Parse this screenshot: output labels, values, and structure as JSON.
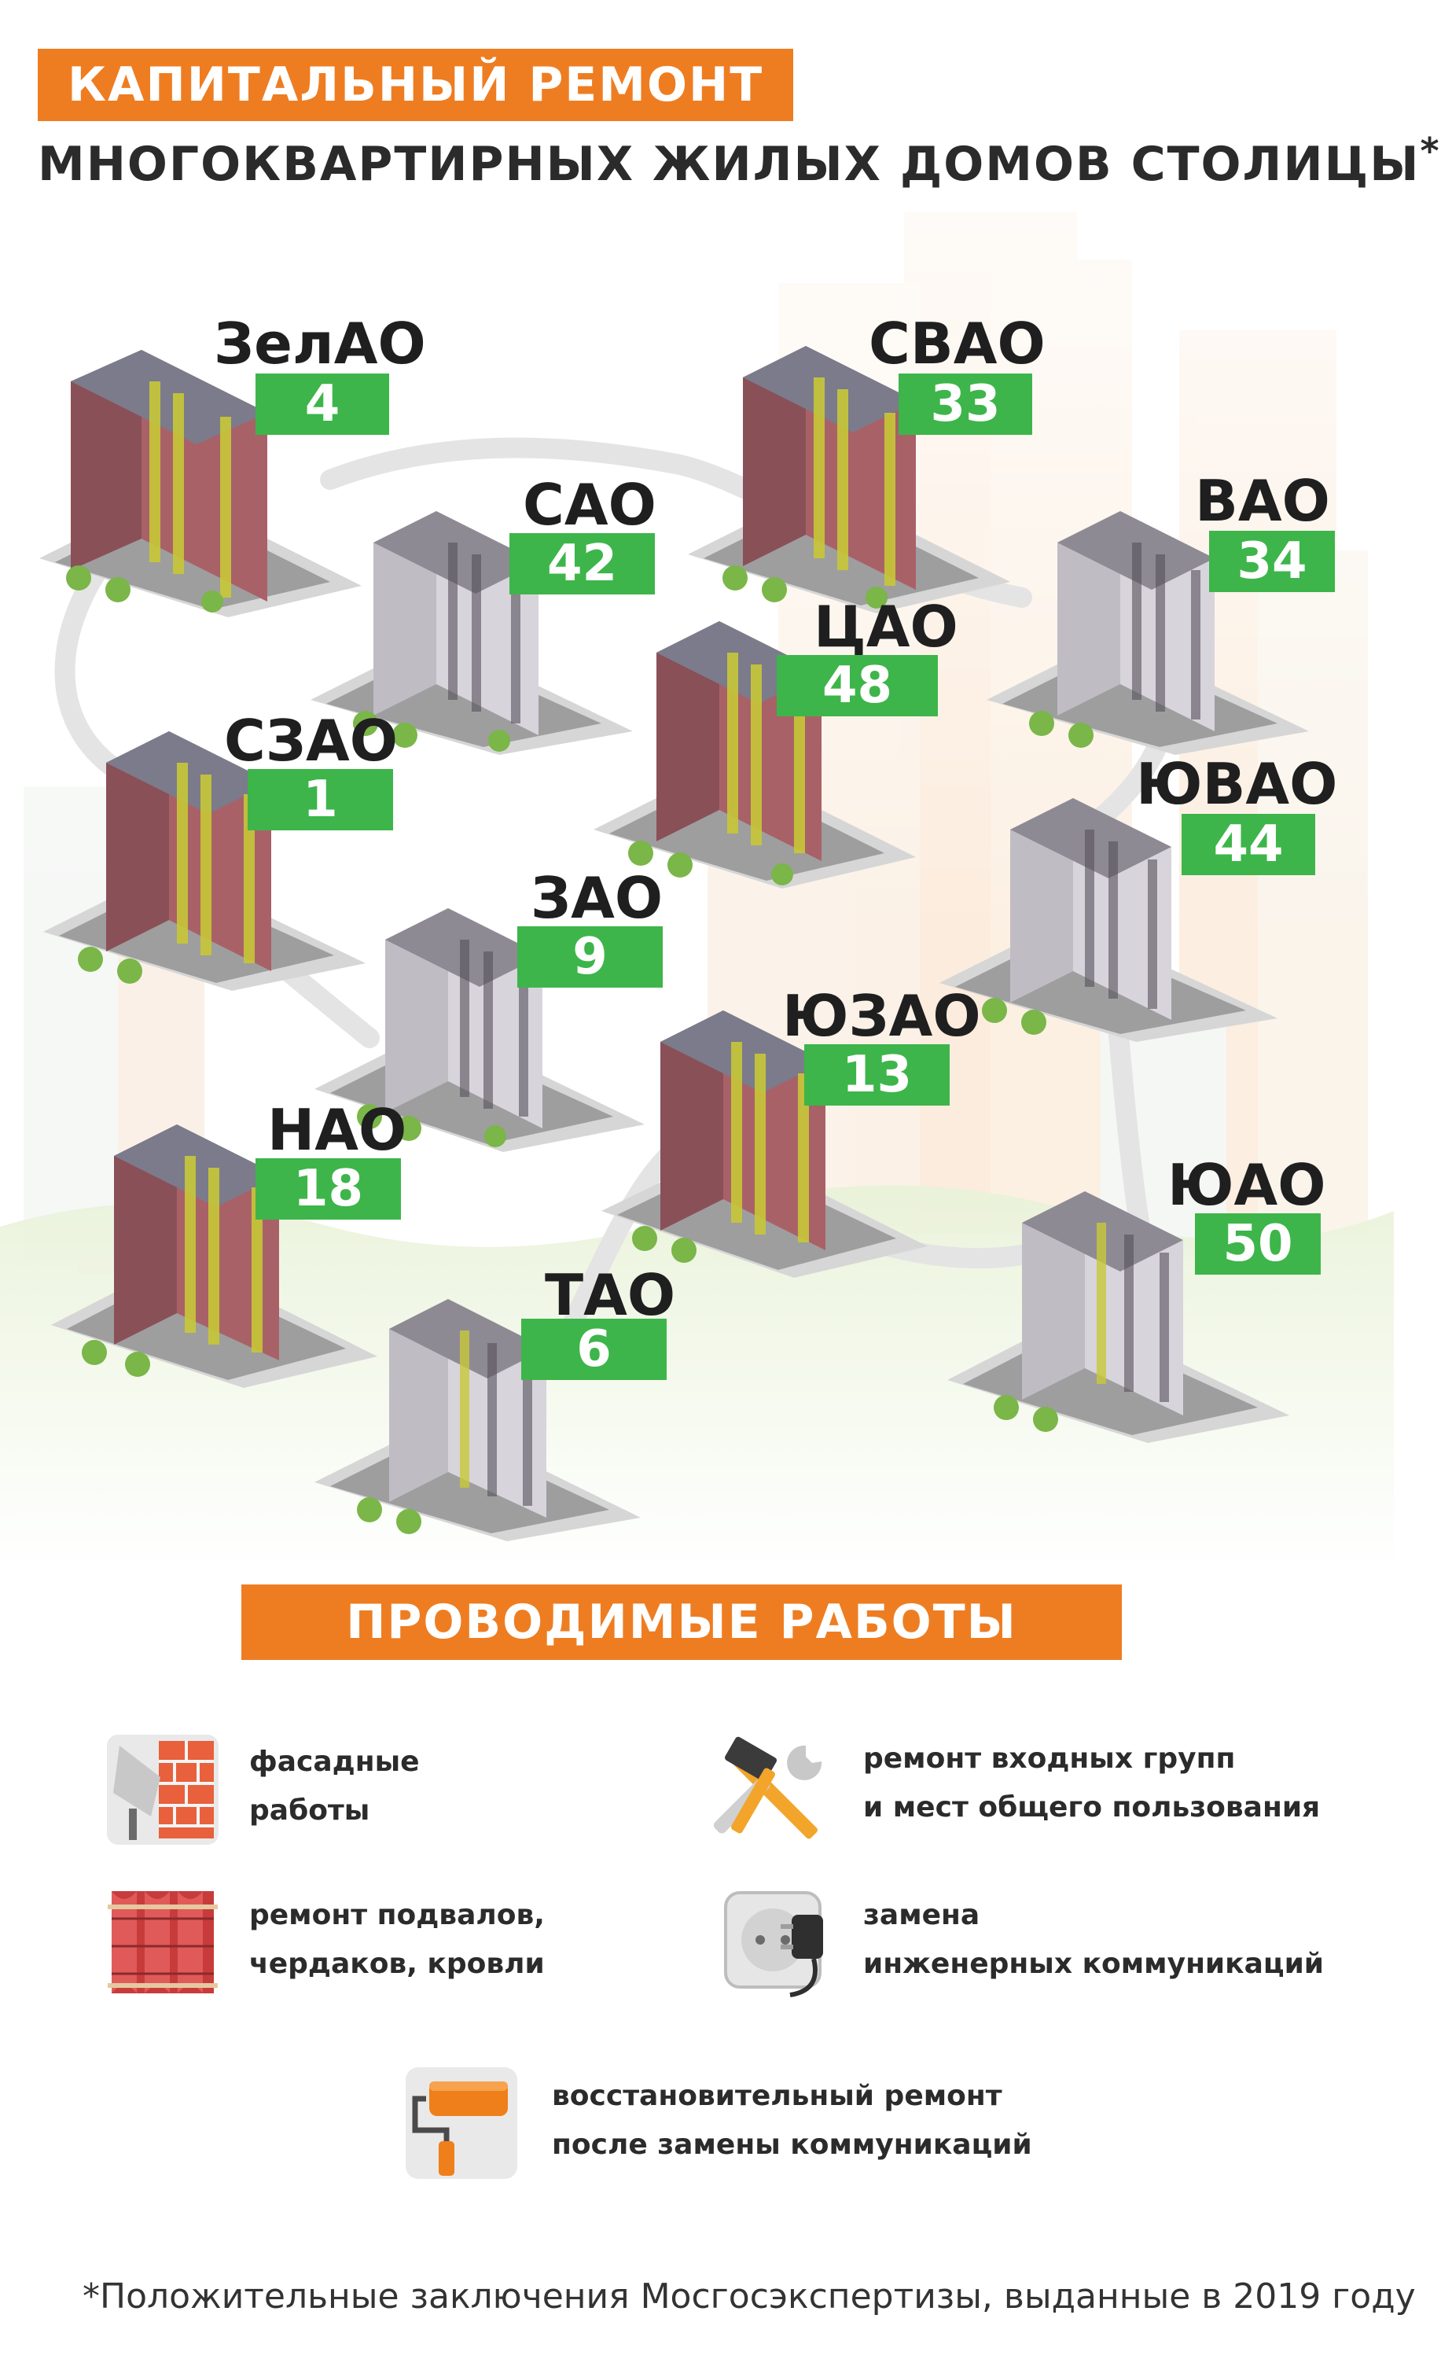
{
  "header": {
    "title": "КАПИТАЛЬНЫЙ РЕМОНТ",
    "subtitle": "МНОГОКВАРТИРНЫХ ЖИЛЫХ ДОМОВ СТОЛИЦЫ",
    "subtitle_mark": "*"
  },
  "colors": {
    "accent_orange": "#ee7d22",
    "count_green": "#3db54a"
  },
  "districts": [
    {
      "name": "ЗелАО",
      "count": "4"
    },
    {
      "name": "СВАО",
      "count": "33"
    },
    {
      "name": "САО",
      "count": "42"
    },
    {
      "name": "ВАО",
      "count": "34"
    },
    {
      "name": "ЦАО",
      "count": "48"
    },
    {
      "name": "СЗАО",
      "count": "1"
    },
    {
      "name": "ЮВАО",
      "count": "44"
    },
    {
      "name": "ЗАО",
      "count": "9"
    },
    {
      "name": "ЮЗАО",
      "count": "13"
    },
    {
      "name": "НАО",
      "count": "18"
    },
    {
      "name": "ЮАО",
      "count": "50"
    },
    {
      "name": "ТАО",
      "count": "6"
    }
  ],
  "works": {
    "title": "ПРОВОДИМЫЕ РАБОТЫ",
    "items": [
      {
        "icon": "trowel-brick-icon",
        "line1": "фасадные",
        "line2": "работы"
      },
      {
        "icon": "hammer-wrench-icon",
        "line1": "ремонт входных групп",
        "line2": "и мест общего пользования"
      },
      {
        "icon": "roof-tiles-icon",
        "line1": "ремонт подвалов,",
        "line2": "чердаков, кровли"
      },
      {
        "icon": "socket-plug-icon",
        "line1": "замена",
        "line2": "инженерных коммуникаций"
      },
      {
        "icon": "paint-roller-icon",
        "line1": "восстановительный ремонт",
        "line2": "после замены коммуникаций"
      }
    ]
  },
  "footnote": "*Положительные заключения Мосгосэкспертизы, выданные в 2019 году"
}
